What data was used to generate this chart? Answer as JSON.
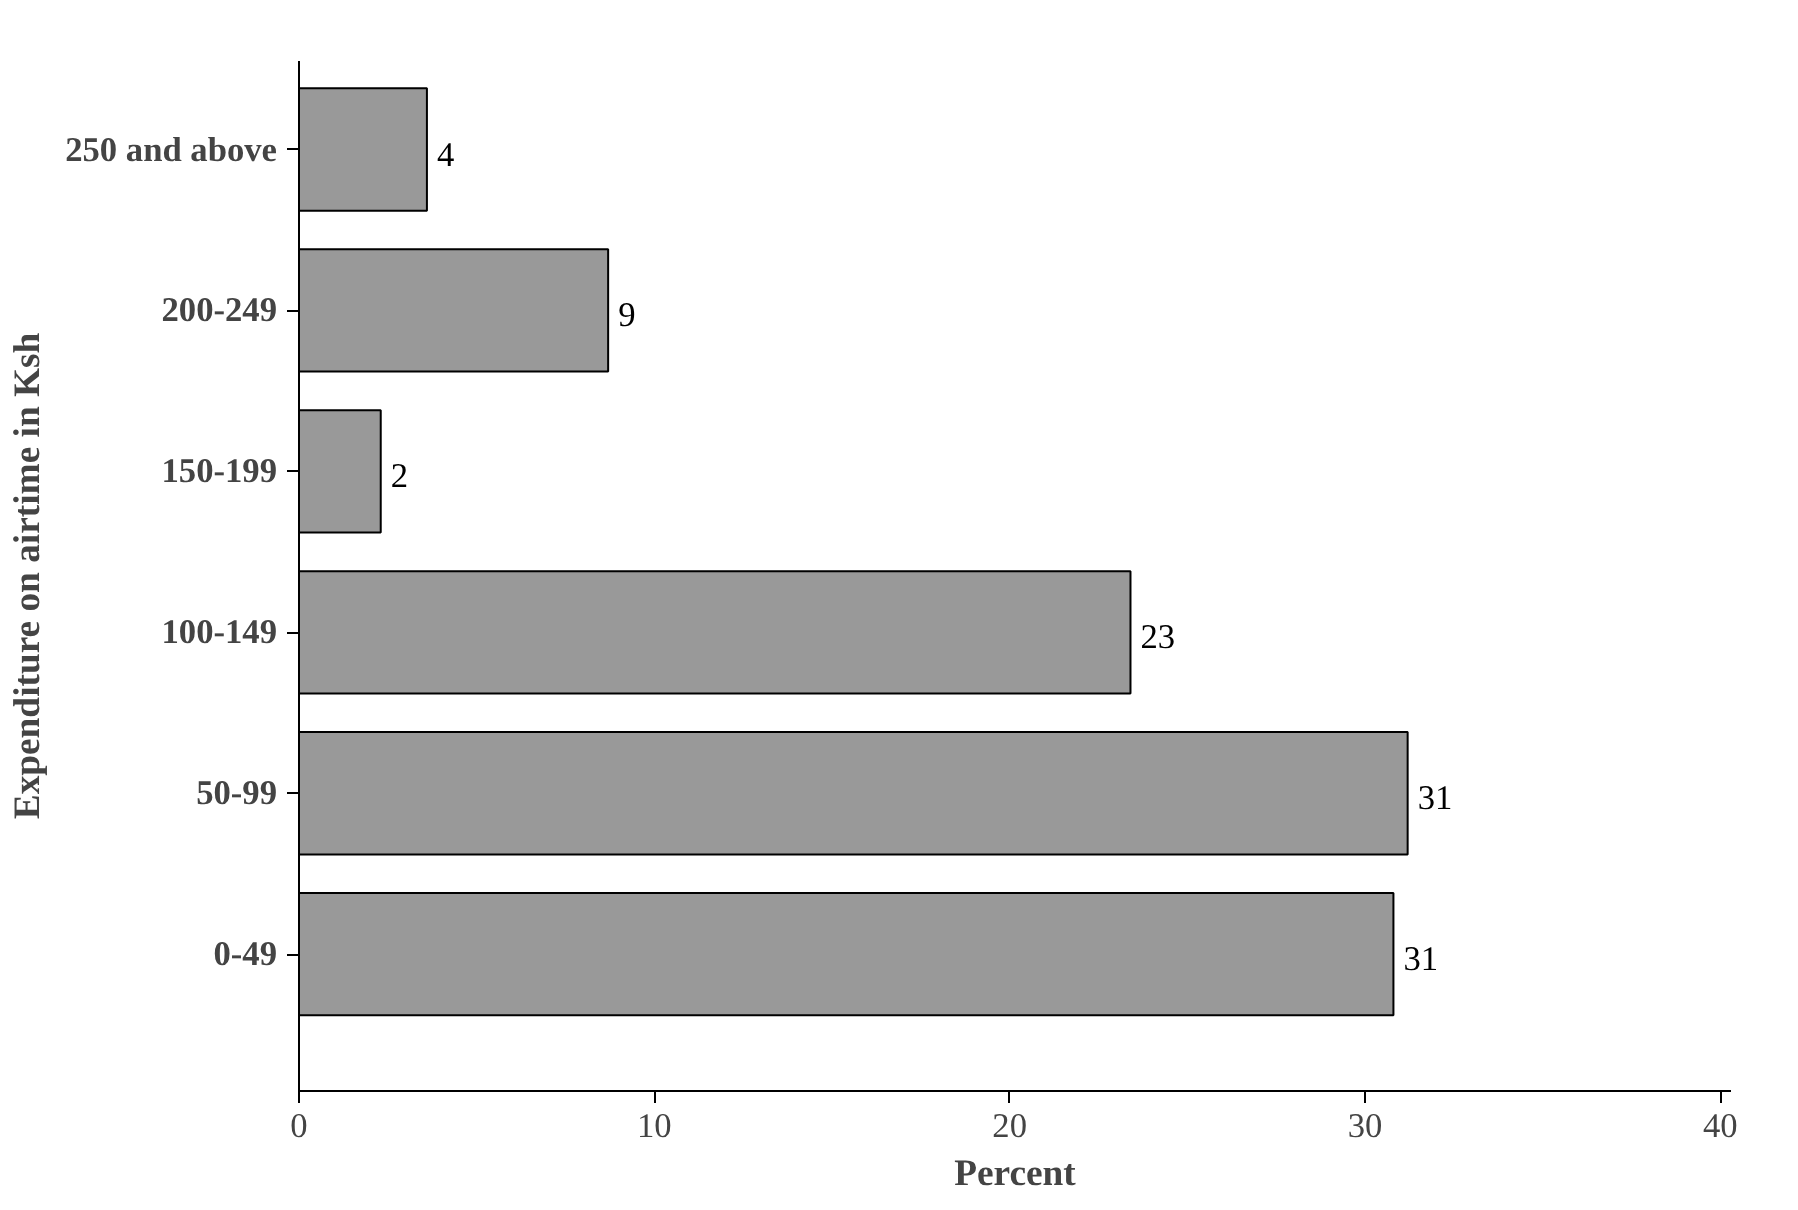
{
  "chart_data": {
    "type": "bar",
    "orientation": "horizontal",
    "xlabel": "Percent",
    "ylabel": "Expenditure on airtime in Ksh",
    "categories": [
      "250 and above",
      "200-249",
      "150-199",
      "100-149",
      "50-99",
      "0-49"
    ],
    "values": [
      3.6,
      8.7,
      2.3,
      23.4,
      31.2,
      30.8
    ],
    "value_labels": [
      "4",
      "9",
      "2",
      "23",
      "31",
      "31"
    ],
    "color": "#999999",
    "xlim": [
      0,
      40.3
    ],
    "xticks": [
      0,
      10,
      20,
      30,
      40
    ],
    "grid": false
  }
}
